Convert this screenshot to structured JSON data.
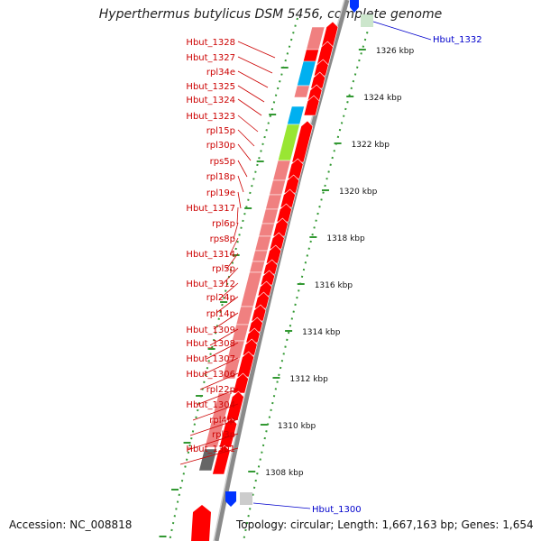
{
  "title": "Hyperthermus butylicus DSM 5456, complete genome",
  "accession": "Accession: NC_008818",
  "topology": "Topology: circular; Length: 1,667,163 bp; Genes: 1,654",
  "colors": {
    "label_red": "#cc0000",
    "label_blue": "#0000cc",
    "gene_red": "#ff0000",
    "gene_pink": "#f08080",
    "gene_cyan": "#00b0f0",
    "gene_lime": "#99e633",
    "gene_gray": "#666666",
    "gene_blue": "#0033ff",
    "gene_lightgray": "#cccccc",
    "backbone": "#8a8a8a",
    "tick_green": "#339933"
  },
  "scale_ticks": [
    "1326 kbp",
    "1324 kbp",
    "1322 kbp",
    "1320 kbp",
    "1318 kbp",
    "1316 kbp",
    "1314 kbp",
    "1312 kbp",
    "1310 kbp",
    "1308 kbp"
  ],
  "left_labels": [
    "Hbut_1328",
    "Hbut_1327",
    "rpl34e",
    "Hbut_1325",
    "Hbut_1324",
    "Hbut_1323",
    "rpl15p",
    "rpl30p",
    "rps5p",
    "rpl18p",
    "rpl19e",
    "Hbut_1317",
    "rpl6p",
    "rps8p",
    "Hbut_1314",
    "rpl5p",
    "Hbut_1312",
    "rpl24p",
    "rpl14p",
    "Hbut_1309",
    "Hbut_1308",
    "Hbut_1307",
    "Hbut_1306",
    "rpl22p",
    "Hbut_1304",
    "rpl4lp",
    "rpl3p",
    "Hbut_1301"
  ],
  "right_labels": [
    "Hbut_1332",
    "Hbut_1300"
  ]
}
